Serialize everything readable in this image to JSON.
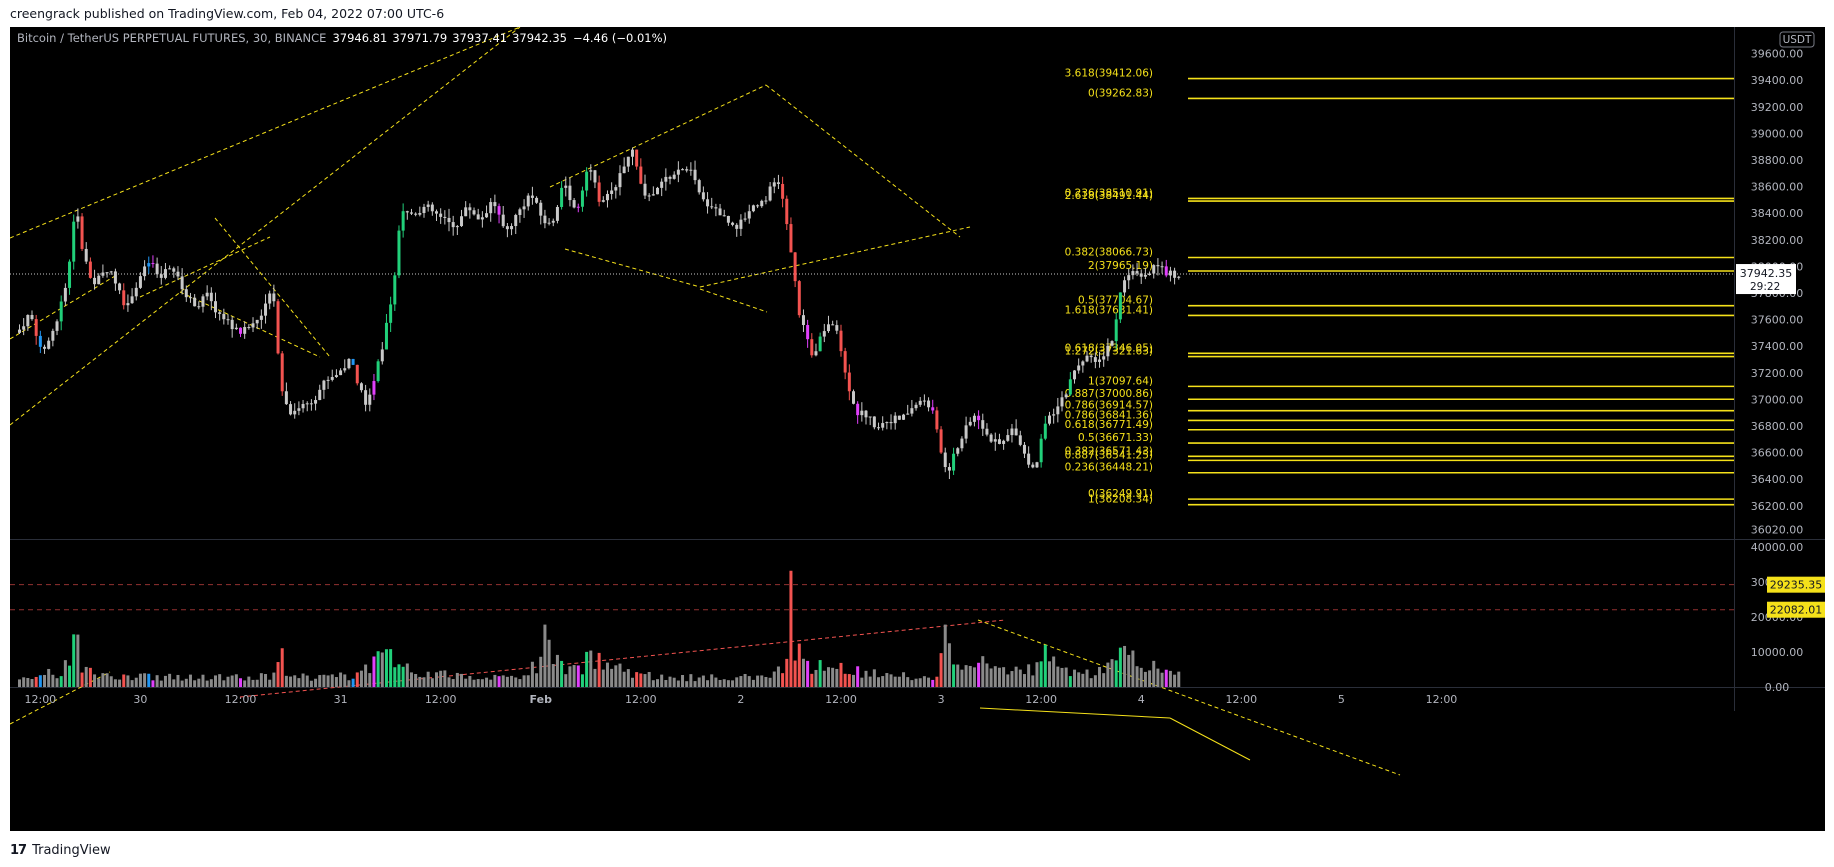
{
  "publish_line": "creengrack published on TradingView.com, Feb 04, 2022 07:00 UTC-6",
  "footer": {
    "brand": "TradingView",
    "logo_icon": "tradingview-logo-icon"
  },
  "chart_data": {
    "type": "candlestick",
    "symbol": "Bitcoin / TetherUS PERPETUAL FUTURES, 30, BINANCE",
    "ohlc": {
      "open": "37946.81",
      "high": "37971.79",
      "low": "37937.41",
      "close": "37942.35",
      "change": "−4.46 (−0.01%)"
    },
    "currency": "USDT",
    "price_axis": {
      "ylim": [
        35950,
        39800
      ],
      "ticks": [
        "36020.00",
        "36200.00",
        "36400.00",
        "36600.00",
        "36800.00",
        "37000.00",
        "37200.00",
        "37400.00",
        "37600.00",
        "37800.00",
        "38000.00",
        "38200.00",
        "38400.00",
        "38600.00",
        "38800.00",
        "39000.00",
        "39200.00",
        "39400.00",
        "39600.00"
      ],
      "last_price": "37942.35",
      "countdown": "29:22"
    },
    "volume_axis": {
      "ylim": [
        0,
        42000
      ],
      "ticks": [
        "0.00",
        "10000.00",
        "20000.00",
        "30000.00",
        "40000.00"
      ],
      "markers": [
        {
          "label": "29235.35",
          "value": 29235.35
        },
        {
          "label": "22082.01",
          "value": 22082.01
        }
      ]
    },
    "x_axis": {
      "ticks": [
        {
          "label": "12:00",
          "bar": 5
        },
        {
          "label": "30",
          "bar": 29
        },
        {
          "label": "12:00",
          "bar": 53
        },
        {
          "label": "31",
          "bar": 77
        },
        {
          "label": "12:00",
          "bar": 101
        },
        {
          "label": "Feb",
          "bar": 125,
          "bold": true
        },
        {
          "label": "12:00",
          "bar": 149
        },
        {
          "label": "2",
          "bar": 173
        },
        {
          "label": "12:00",
          "bar": 197
        },
        {
          "label": "3",
          "bar": 221
        },
        {
          "label": "12:00",
          "bar": 245
        },
        {
          "label": "4",
          "bar": 269
        },
        {
          "label": "12:00",
          "bar": 293
        },
        {
          "label": "5",
          "bar": 317
        },
        {
          "label": "12:00",
          "bar": 341
        }
      ]
    },
    "fib_levels": [
      {
        "label": "3.618(39412.06)",
        "value": 39412.06
      },
      {
        "label": "0(39262.83)",
        "value": 39262.83
      },
      {
        "label": "0.236(38510.91)",
        "value": 38510.91
      },
      {
        "label": "2.618(38491.44)",
        "value": 38491.44
      },
      {
        "label": "0.382(38066.73)",
        "value": 38066.73
      },
      {
        "label": "2(37965.19)",
        "value": 37965.19
      },
      {
        "label": "0.5(37704.67)",
        "value": 37704.67
      },
      {
        "label": "1.618(37631.41)",
        "value": 37631.41
      },
      {
        "label": "0.618(37346.05)",
        "value": 37346.05
      },
      {
        "label": "1.272(37321.63)",
        "value": 37321.63
      },
      {
        "label": "1(37097.64)",
        "value": 37097.64
      },
      {
        "label": "0.887(37000.86)",
        "value": 37000.86
      },
      {
        "label": "0.786(36914.57)",
        "value": 36914.57
      },
      {
        "label": "0.786(36841.36)",
        "value": 36841.36
      },
      {
        "label": "0.618(36771.49)",
        "value": 36771.49
      },
      {
        "label": "0.5(36671.33)",
        "value": 36671.33
      },
      {
        "label": "0.382(36571.43)",
        "value": 36571.43
      },
      {
        "label": "0.887(36541.25)",
        "value": 36541.25
      },
      {
        "label": "0.236(36448.21)",
        "value": 36448.21
      },
      {
        "label": "0(36249.91)",
        "value": 36249.91
      },
      {
        "label": "1(36208.34)",
        "value": 36208.34
      }
    ],
    "price_path": [
      [
        0,
        37500
      ],
      [
        3,
        37650
      ],
      [
        6,
        37350
      ],
      [
        9,
        37550
      ],
      [
        12,
        37900
      ],
      [
        14,
        38500
      ],
      [
        15,
        38200
      ],
      [
        18,
        37850
      ],
      [
        22,
        38000
      ],
      [
        26,
        37700
      ],
      [
        29,
        37900
      ],
      [
        32,
        38050
      ],
      [
        34,
        37900
      ],
      [
        37,
        38000
      ],
      [
        40,
        37800
      ],
      [
        43,
        37700
      ],
      [
        45,
        37800
      ],
      [
        48,
        37650
      ],
      [
        50,
        37600
      ],
      [
        53,
        37500
      ],
      [
        56,
        37550
      ],
      [
        59,
        37650
      ],
      [
        60,
        37750
      ],
      [
        61,
        37900
      ],
      [
        62,
        37600
      ],
      [
        63,
        37150
      ],
      [
        65,
        36900
      ],
      [
        68,
        36950
      ],
      [
        71,
        37000
      ],
      [
        74,
        37150
      ],
      [
        77,
        37200
      ],
      [
        80,
        37300
      ],
      [
        82,
        37100
      ],
      [
        84,
        36950
      ],
      [
        86,
        37200
      ],
      [
        88,
        37450
      ],
      [
        89,
        37650
      ],
      [
        90,
        37800
      ],
      [
        91,
        38100
      ],
      [
        92,
        38400
      ],
      [
        95,
        38400
      ],
      [
        98,
        38450
      ],
      [
        102,
        38350
      ],
      [
        105,
        38300
      ],
      [
        108,
        38450
      ],
      [
        111,
        38350
      ],
      [
        114,
        38500
      ],
      [
        117,
        38250
      ],
      [
        120,
        38400
      ],
      [
        123,
        38550
      ],
      [
        126,
        38350
      ],
      [
        128,
        38300
      ],
      [
        131,
        38650
      ],
      [
        134,
        38400
      ],
      [
        137,
        38800
      ],
      [
        140,
        38450
      ],
      [
        142,
        38550
      ],
      [
        145,
        38700
      ],
      [
        147,
        38900
      ],
      [
        149,
        38700
      ],
      [
        151,
        38500
      ],
      [
        153,
        38550
      ],
      [
        155,
        38650
      ],
      [
        158,
        38700
      ],
      [
        161,
        38750
      ],
      [
        164,
        38500
      ],
      [
        167,
        38450
      ],
      [
        170,
        38350
      ],
      [
        173,
        38300
      ],
      [
        176,
        38450
      ],
      [
        179,
        38500
      ],
      [
        182,
        38650
      ],
      [
        183,
        38600
      ],
      [
        185,
        38200
      ],
      [
        186,
        38050
      ],
      [
        187,
        37700
      ],
      [
        189,
        37500
      ],
      [
        191,
        37300
      ],
      [
        193,
        37500
      ],
      [
        195,
        37600
      ],
      [
        197,
        37450
      ],
      [
        199,
        37150
      ],
      [
        201,
        36900
      ],
      [
        203,
        36900
      ],
      [
        206,
        36800
      ],
      [
        209,
        36850
      ],
      [
        212,
        36850
      ],
      [
        215,
        36950
      ],
      [
        218,
        37000
      ],
      [
        220,
        36850
      ],
      [
        222,
        36550
      ],
      [
        223,
        36450
      ],
      [
        225,
        36600
      ],
      [
        227,
        36750
      ],
      [
        230,
        36900
      ],
      [
        233,
        36700
      ],
      [
        236,
        36650
      ],
      [
        239,
        36800
      ],
      [
        242,
        36550
      ],
      [
        244,
        36450
      ],
      [
        246,
        36800
      ],
      [
        249,
        36900
      ],
      [
        252,
        37100
      ],
      [
        255,
        37300
      ],
      [
        258,
        37300
      ],
      [
        261,
        37350
      ],
      [
        263,
        37500
      ],
      [
        264,
        37700
      ],
      [
        265,
        37900
      ],
      [
        267,
        37950
      ],
      [
        270,
        37900
      ],
      [
        273,
        38000
      ],
      [
        276,
        37950
      ],
      [
        278,
        37942
      ]
    ],
    "volume_path": [
      [
        0,
        3000
      ],
      [
        5,
        4500
      ],
      [
        10,
        4000
      ],
      [
        14,
        15000
      ],
      [
        15,
        5000
      ],
      [
        20,
        3500
      ],
      [
        30,
        3200
      ],
      [
        40,
        3000
      ],
      [
        50,
        3000
      ],
      [
        60,
        3500
      ],
      [
        63,
        12000
      ],
      [
        64,
        4000
      ],
      [
        70,
        3000
      ],
      [
        80,
        3500
      ],
      [
        85,
        8000
      ],
      [
        88,
        14000
      ],
      [
        90,
        6000
      ],
      [
        95,
        5000
      ],
      [
        100,
        4000
      ],
      [
        110,
        3200
      ],
      [
        120,
        3000
      ],
      [
        125,
        8000
      ],
      [
        126,
        20000
      ],
      [
        128,
        9000
      ],
      [
        130,
        6000
      ],
      [
        135,
        5000
      ],
      [
        137,
        17000
      ],
      [
        138,
        8000
      ],
      [
        142,
        8000
      ],
      [
        145,
        5000
      ],
      [
        150,
        3500
      ],
      [
        160,
        3000
      ],
      [
        170,
        3000
      ],
      [
        180,
        3000
      ],
      [
        182,
        5000
      ],
      [
        183,
        6500
      ],
      [
        184,
        7500
      ],
      [
        185,
        30000
      ],
      [
        186,
        12000
      ],
      [
        188,
        8000
      ],
      [
        190,
        6000
      ],
      [
        195,
        8000
      ],
      [
        200,
        5000
      ],
      [
        210,
        3500
      ],
      [
        220,
        3000
      ],
      [
        222,
        16000
      ],
      [
        224,
        8000
      ],
      [
        226,
        6000
      ],
      [
        230,
        8000
      ],
      [
        235,
        6000
      ],
      [
        240,
        5000
      ],
      [
        245,
        6000
      ],
      [
        246,
        10000
      ],
      [
        250,
        5000
      ],
      [
        255,
        4000
      ],
      [
        260,
        5000
      ],
      [
        265,
        10000
      ],
      [
        266,
        12000
      ],
      [
        270,
        7000
      ],
      [
        275,
        5000
      ],
      [
        278,
        4000
      ]
    ],
    "bar_count": 279,
    "grid": false
  }
}
